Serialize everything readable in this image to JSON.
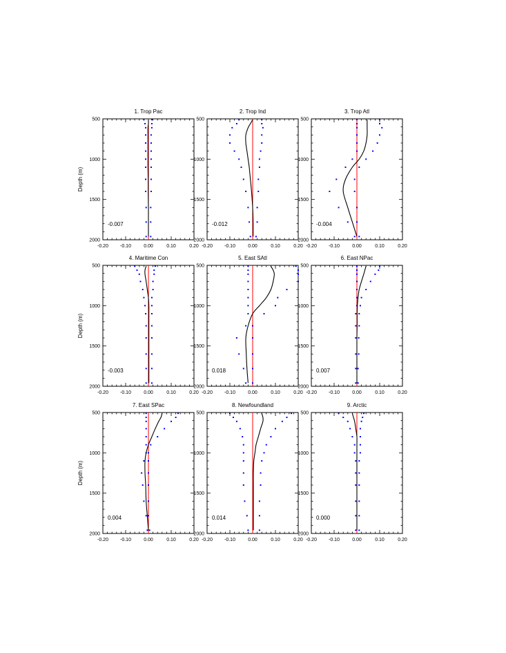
{
  "chart_data": {
    "type": "line",
    "axes": {
      "xlim": [
        -0.2,
        0.2
      ],
      "ylim": [
        2000,
        500
      ],
      "xticks": [
        -0.2,
        -0.1,
        0.0,
        0.1,
        0.2
      ],
      "xtick_labels": [
        "-0.20",
        "-0.10",
        "0.00",
        "0.10",
        "0.20"
      ],
      "yticks": [
        500,
        1000,
        1500,
        2000
      ],
      "ytick_labels": [
        "500",
        "1000",
        "1500",
        "2000"
      ],
      "ylabel": "Depth (m)",
      "reference_line_x": 0.0
    },
    "colors": {
      "curve": "#000000",
      "reference": "#ff0000",
      "dots": "#0000ff"
    },
    "panels": [
      {
        "title": "1. Trop Pac",
        "value_label": "-0.007",
        "depth": [
          510,
          560,
          610,
          700,
          800,
          900,
          1000,
          1100,
          1250,
          1400,
          1600,
          1780,
          1960
        ],
        "mean": [
          0.0,
          0.0,
          -0.002,
          -0.002,
          -0.002,
          -0.002,
          -0.002,
          -0.002,
          -0.001,
          -0.001,
          0.0,
          0.0,
          0.0
        ],
        "lower": [
          -0.02,
          -0.015,
          -0.012,
          -0.012,
          -0.012,
          -0.012,
          -0.012,
          -0.012,
          -0.012,
          -0.012,
          -0.01,
          -0.01,
          -0.01
        ],
        "upper": [
          0.015,
          0.015,
          0.015,
          0.012,
          0.012,
          0.012,
          0.012,
          0.012,
          0.012,
          0.012,
          0.01,
          0.01,
          0.01
        ]
      },
      {
        "title": "2. Trop Ind",
        "value_label": "-0.012",
        "depth": [
          510,
          560,
          610,
          700,
          800,
          900,
          1000,
          1100,
          1250,
          1400,
          1600,
          1780,
          1960
        ],
        "mean": [
          0.0,
          -0.01,
          -0.02,
          -0.03,
          -0.03,
          -0.025,
          -0.02,
          -0.015,
          -0.01,
          -0.005,
          0.0,
          0.002,
          0.002
        ],
        "lower": [
          -0.06,
          -0.07,
          -0.09,
          -0.1,
          -0.1,
          -0.08,
          -0.06,
          -0.05,
          -0.04,
          -0.03,
          -0.02,
          -0.015,
          -0.01
        ],
        "upper": [
          0.04,
          0.04,
          0.045,
          0.04,
          0.04,
          0.035,
          0.03,
          0.03,
          0.025,
          0.025,
          0.02,
          0.02,
          0.015
        ]
      },
      {
        "title": "3. Trop Atl",
        "value_label": "-0.004",
        "depth": [
          510,
          560,
          610,
          700,
          800,
          900,
          1000,
          1100,
          1250,
          1400,
          1600,
          1780,
          1960
        ],
        "mean": [
          0.045,
          0.045,
          0.045,
          0.045,
          0.04,
          0.03,
          0.01,
          -0.02,
          -0.05,
          -0.06,
          -0.04,
          -0.02,
          0.0
        ],
        "lower": [
          0.0,
          0.0,
          0.0,
          0.0,
          0.0,
          0.0,
          -0.02,
          -0.05,
          -0.09,
          -0.12,
          -0.08,
          -0.04,
          -0.01
        ],
        "upper": [
          0.1,
          0.1,
          0.11,
          0.1,
          0.09,
          0.07,
          0.04,
          0.01,
          -0.01,
          -0.01,
          0.0,
          0.0,
          0.01
        ]
      },
      {
        "title": "4. Maritime Con",
        "value_label": "-0.003",
        "depth": [
          510,
          560,
          610,
          700,
          800,
          900,
          1000,
          1100,
          1250,
          1400,
          1600,
          1780,
          1960
        ],
        "mean": [
          -0.01,
          -0.015,
          -0.015,
          -0.01,
          -0.005,
          0.0,
          0.002,
          0.002,
          0.002,
          0.002,
          0.002,
          0.002,
          0.002
        ],
        "lower": [
          -0.06,
          -0.05,
          -0.04,
          -0.035,
          -0.025,
          -0.02,
          -0.015,
          -0.012,
          -0.01,
          -0.01,
          -0.01,
          -0.01,
          -0.01
        ],
        "upper": [
          0.03,
          0.025,
          0.025,
          0.02,
          0.02,
          0.015,
          0.015,
          0.015,
          0.015,
          0.015,
          0.015,
          0.015,
          0.015
        ]
      },
      {
        "title": "5. East SAtl",
        "value_label": "0.018",
        "depth": [
          510,
          560,
          610,
          700,
          800,
          900,
          1000,
          1100,
          1250,
          1400,
          1600,
          1780,
          1960
        ],
        "mean": [
          0.08,
          0.09,
          0.095,
          0.09,
          0.08,
          0.06,
          0.03,
          0.0,
          -0.02,
          -0.03,
          -0.028,
          -0.025,
          -0.02
        ],
        "lower": [
          -0.02,
          -0.02,
          -0.02,
          -0.02,
          -0.02,
          -0.02,
          -0.02,
          -0.02,
          -0.03,
          -0.07,
          -0.06,
          -0.04,
          -0.03
        ],
        "upper": [
          0.19,
          0.2,
          0.2,
          0.2,
          0.15,
          0.11,
          0.1,
          0.05,
          0.0,
          0.0,
          0.0,
          0.0,
          0.0
        ]
      },
      {
        "title": "6. East NPac",
        "value_label": "0.007",
        "depth": [
          510,
          560,
          610,
          700,
          800,
          900,
          1000,
          1100,
          1250,
          1400,
          1600,
          1780,
          1960
        ],
        "mean": [
          0.04,
          0.035,
          0.03,
          0.02,
          0.01,
          0.005,
          0.002,
          0.001,
          0.001,
          0.0,
          0.0,
          0.0,
          0.0
        ],
        "lower": [
          0.0,
          0.0,
          0.0,
          0.0,
          0.0,
          0.0,
          0.0,
          -0.005,
          -0.005,
          -0.005,
          -0.005,
          -0.005,
          -0.005
        ],
        "upper": [
          0.1,
          0.095,
          0.08,
          0.06,
          0.04,
          0.02,
          0.015,
          0.01,
          0.01,
          0.008,
          0.008,
          0.005,
          0.005
        ]
      },
      {
        "title": "7. East SPac",
        "value_label": "0.004",
        "depth": [
          510,
          560,
          610,
          700,
          800,
          900,
          1000,
          1100,
          1250,
          1400,
          1600,
          1780,
          1960
        ],
        "mean": [
          0.06,
          0.055,
          0.045,
          0.03,
          0.015,
          0.0,
          -0.01,
          -0.015,
          -0.015,
          -0.012,
          -0.01,
          -0.005,
          0.0
        ],
        "lower": [
          -0.01,
          -0.01,
          -0.01,
          -0.01,
          -0.01,
          -0.01,
          -0.01,
          -0.02,
          -0.03,
          -0.025,
          -0.02,
          -0.01,
          -0.005
        ],
        "upper": [
          0.13,
          0.12,
          0.1,
          0.07,
          0.04,
          0.01,
          0.0,
          0.0,
          0.0,
          0.0,
          0.0,
          0.0,
          0.005
        ]
      },
      {
        "title": "8. Newfoundland",
        "value_label": "0.014",
        "depth": [
          510,
          560,
          610,
          700,
          800,
          900,
          1000,
          1100,
          1250,
          1400,
          1600,
          1780,
          1960
        ],
        "mean": [
          0.04,
          0.045,
          0.045,
          0.035,
          0.025,
          0.015,
          0.01,
          0.005,
          0.003,
          0.003,
          0.003,
          0.003,
          0.003
        ],
        "lower": [
          -0.1,
          -0.085,
          -0.07,
          -0.055,
          -0.045,
          -0.04,
          -0.04,
          -0.04,
          -0.04,
          -0.04,
          -0.035,
          -0.025,
          -0.02
        ],
        "upper": [
          0.17,
          0.15,
          0.13,
          0.1,
          0.08,
          0.06,
          0.05,
          0.04,
          0.035,
          0.035,
          0.03,
          0.03,
          0.03
        ]
      },
      {
        "title": "9. Arctic",
        "value_label": "0.000",
        "depth": [
          510,
          560,
          610,
          700,
          800,
          900,
          1000,
          1100,
          1250,
          1400,
          1600,
          1780,
          1960
        ],
        "mean": [
          -0.02,
          -0.015,
          -0.01,
          -0.005,
          0.0,
          0.0,
          0.0,
          0.0,
          0.0,
          0.0,
          0.0,
          0.0,
          0.0
        ],
        "lower": [
          -0.08,
          -0.06,
          -0.04,
          -0.03,
          -0.02,
          -0.01,
          -0.01,
          -0.005,
          -0.005,
          -0.005,
          -0.005,
          -0.005,
          -0.005
        ],
        "upper": [
          0.03,
          0.025,
          0.02,
          0.015,
          0.015,
          0.015,
          0.015,
          0.01,
          0.01,
          0.01,
          0.01,
          0.01,
          0.01
        ]
      }
    ]
  }
}
